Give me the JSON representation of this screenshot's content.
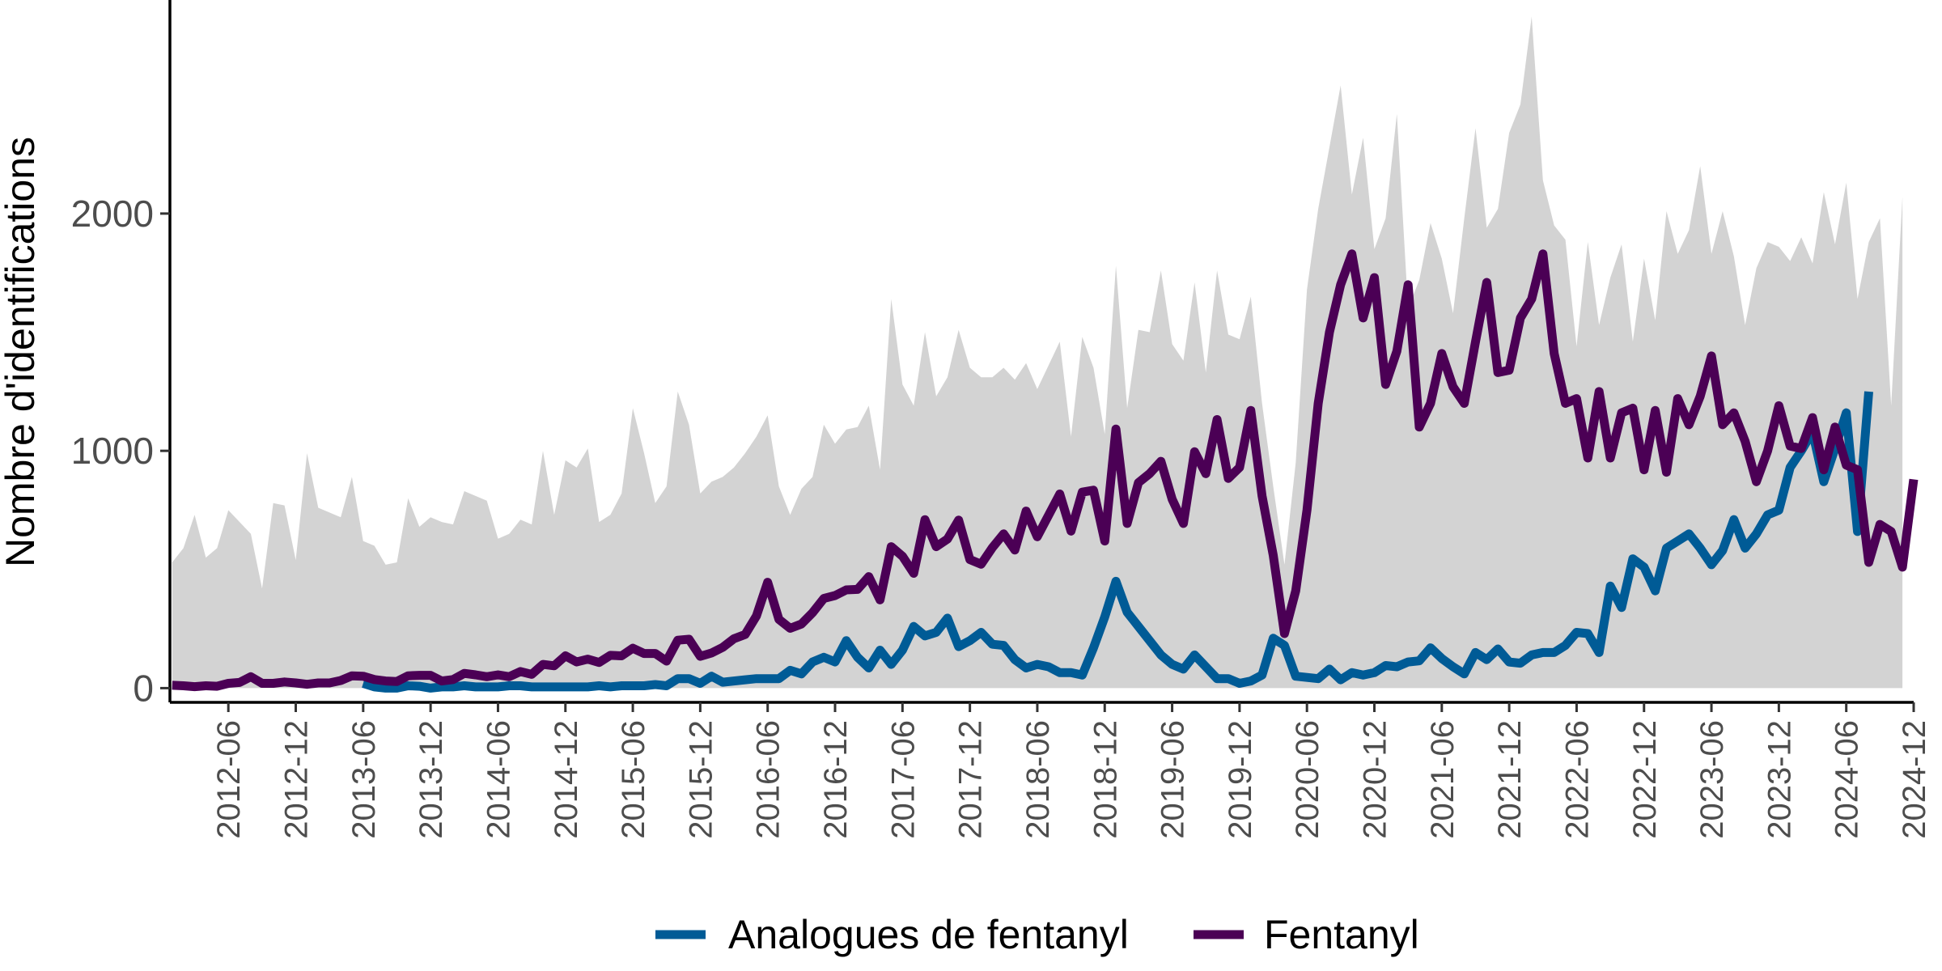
{
  "chart_data": {
    "type": "line",
    "title": "",
    "xlabel": "",
    "ylabel": "Nombre d'identifications",
    "x_start": "2012-01",
    "x_end": "2024-12",
    "x_tick_labels": [
      "2012-06",
      "2012-12",
      "2013-06",
      "2013-12",
      "2014-06",
      "2014-12",
      "2015-06",
      "2015-12",
      "2016-06",
      "2016-12",
      "2017-06",
      "2017-12",
      "2018-06",
      "2018-12",
      "2019-06",
      "2019-12",
      "2020-06",
      "2020-12",
      "2021-06",
      "2021-12",
      "2022-06",
      "2022-12",
      "2023-06",
      "2023-12",
      "2024-06",
      "2024-12"
    ],
    "y_ticks": [
      0,
      1000,
      2000
    ],
    "y_tick_labels": [
      "0",
      "1000",
      "2000"
    ],
    "ylim": [
      -60,
      2900
    ],
    "grid": false,
    "legend_position": "bottom",
    "background_series": {
      "fill": "#d3d3d3",
      "values": [
        530,
        590,
        730,
        550,
        590,
        750,
        700,
        650,
        420,
        780,
        770,
        540,
        990,
        760,
        740,
        720,
        890,
        620,
        600,
        520,
        530,
        800,
        680,
        720,
        700,
        690,
        830,
        810,
        790,
        630,
        650,
        710,
        690,
        1000,
        730,
        960,
        930,
        1010,
        700,
        730,
        820,
        1180,
        990,
        780,
        850,
        1250,
        1110,
        820,
        870,
        890,
        930,
        990,
        1060,
        1150,
        850,
        730,
        840,
        890,
        1110,
        1030,
        1090,
        1100,
        1190,
        920,
        1640,
        1280,
        1190,
        1500,
        1230,
        1310,
        1510,
        1350,
        1310,
        1310,
        1350,
        1300,
        1370,
        1260,
        1360,
        1460,
        1060,
        1480,
        1350,
        1070,
        1780,
        1180,
        1510,
        1500,
        1760,
        1450,
        1380,
        1710,
        1330,
        1760,
        1490,
        1470,
        1650,
        1200,
        850,
        520,
        950,
        1680,
        2020,
        2280,
        2540,
        2080,
        2320,
        1850,
        1980,
        2420,
        1600,
        1720,
        1960,
        1810,
        1580,
        1980,
        2360,
        1940,
        2020,
        2340,
        2460,
        2830,
        2140,
        1950,
        1890,
        1440,
        1880,
        1530,
        1730,
        1870,
        1460,
        1810,
        1550,
        2010,
        1830,
        1930,
        2200,
        1830,
        2010,
        1820,
        1530,
        1770,
        1880,
        1860,
        1800,
        1900,
        1790,
        2090,
        1870,
        2130,
        1640,
        1880,
        1980,
        1190,
        2070
      ]
    },
    "series": [
      {
        "name": "Fentanyl",
        "color": "#4b0055",
        "values": [
          12,
          10,
          6,
          10,
          8,
          20,
          24,
          48,
          20,
          20,
          26,
          22,
          16,
          22,
          22,
          32,
          52,
          50,
          36,
          30,
          28,
          52,
          54,
          54,
          30,
          36,
          62,
          56,
          48,
          56,
          48,
          70,
          58,
          100,
          94,
          136,
          110,
          122,
          108,
          138,
          136,
          168,
          146,
          146,
          114,
          202,
          206,
          134,
          148,
          172,
          208,
          226,
          304,
          446,
          290,
          252,
          270,
          318,
          378,
          390,
          414,
          416,
          470,
          372,
          596,
          556,
          484,
          710,
          596,
          628,
          708,
          542,
          522,
          592,
          650,
          582,
          746,
          638,
          728,
          818,
          662,
          826,
          834,
          620,
          1092,
          694,
          866,
          904,
          956,
          796,
          694,
          996,
          904,
          1132,
          884,
          930,
          1170,
          810,
          560,
          230,
          410,
          750,
          1200,
          1500,
          1700,
          1830,
          1560,
          1730,
          1280,
          1420,
          1700,
          1100,
          1200,
          1410,
          1270,
          1200,
          1460,
          1710,
          1330,
          1340,
          1560,
          1640,
          1830,
          1410,
          1200,
          1220,
          970,
          1250,
          970,
          1160,
          1180,
          920,
          1170,
          910,
          1220,
          1110,
          1230,
          1400,
          1110,
          1160,
          1040,
          870,
          1000,
          1190,
          1020,
          1010,
          1140,
          920,
          1100,
          940,
          920,
          530,
          690,
          660,
          510,
          880
        ]
      },
      {
        "name": "Analogues de fentanyl",
        "color": "#005b96",
        "start_index": 17,
        "values": [
          20,
          5,
          0,
          0,
          10,
          8,
          0,
          5,
          5,
          10,
          5,
          5,
          5,
          10,
          10,
          5,
          5,
          5,
          5,
          5,
          5,
          10,
          5,
          10,
          10,
          10,
          15,
          10,
          40,
          40,
          20,
          50,
          25,
          30,
          35,
          40,
          40,
          40,
          75,
          60,
          110,
          130,
          110,
          200,
          130,
          85,
          160,
          100,
          160,
          260,
          220,
          235,
          295,
          175,
          200,
          235,
          185,
          180,
          120,
          85,
          100,
          90,
          65,
          65,
          55,
          170,
          300,
          450,
          320,
          260,
          200,
          140,
          100,
          80,
          140,
          90,
          40,
          40,
          20,
          30,
          55,
          210,
          180,
          50,
          45,
          40,
          80,
          35,
          65,
          55,
          65,
          95,
          90,
          110,
          115,
          170,
          125,
          90,
          60,
          150,
          120,
          165,
          110,
          105,
          140,
          150,
          150,
          180,
          235,
          230,
          150,
          430,
          340,
          545,
          510,
          410,
          590,
          620,
          650,
          590,
          520,
          580,
          710,
          590,
          650,
          730,
          750,
          930,
          1000,
          1080,
          870,
          1010,
          1160,
          660,
          1250
        ]
      }
    ]
  }
}
